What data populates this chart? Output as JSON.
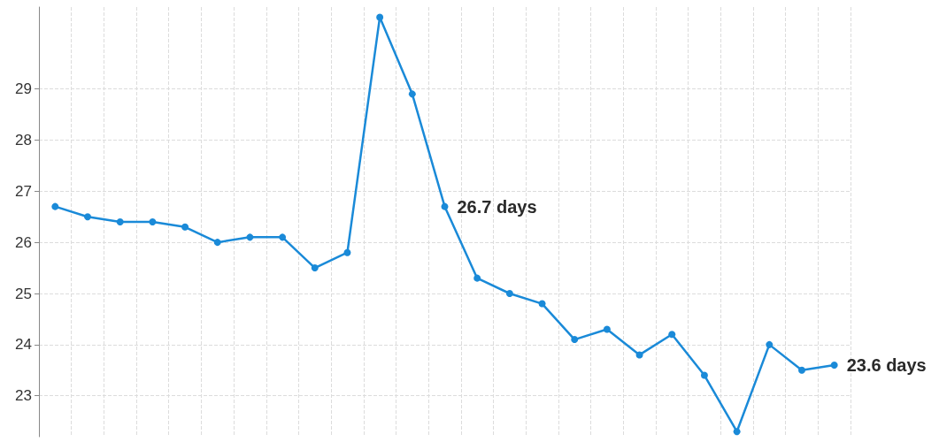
{
  "chart_data": {
    "type": "line",
    "categories": [
      null,
      null,
      null,
      null,
      null,
      null,
      null,
      null,
      null,
      null,
      null,
      null,
      null,
      null,
      null,
      null,
      null,
      null,
      null,
      null,
      null,
      null,
      null,
      null,
      null
    ],
    "series": [
      {
        "color": "#1a8ad8",
        "values": [
          26.7,
          26.5,
          26.4,
          26.4,
          26.3,
          26.0,
          26.1,
          26.1,
          25.5,
          25.8,
          30.4,
          28.9,
          26.7,
          25.3,
          25.0,
          24.8,
          24.1,
          24.3,
          23.8,
          24.2,
          23.4,
          22.3,
          24.0,
          23.5,
          23.6
        ],
        "value_labels": [
          null,
          null,
          null,
          null,
          null,
          null,
          null,
          null,
          null,
          null,
          null,
          null,
          "26.7 days",
          null,
          null,
          null,
          null,
          null,
          null,
          null,
          null,
          null,
          null,
          null,
          "23.6 days"
        ]
      }
    ],
    "ylim": [
      22.2,
      30.6
    ],
    "yticks": [
      23,
      24,
      25,
      26,
      27,
      28,
      29
    ],
    "grid": true,
    "marker": "circle",
    "line_style": "solid",
    "tick_labels": "y"
  }
}
